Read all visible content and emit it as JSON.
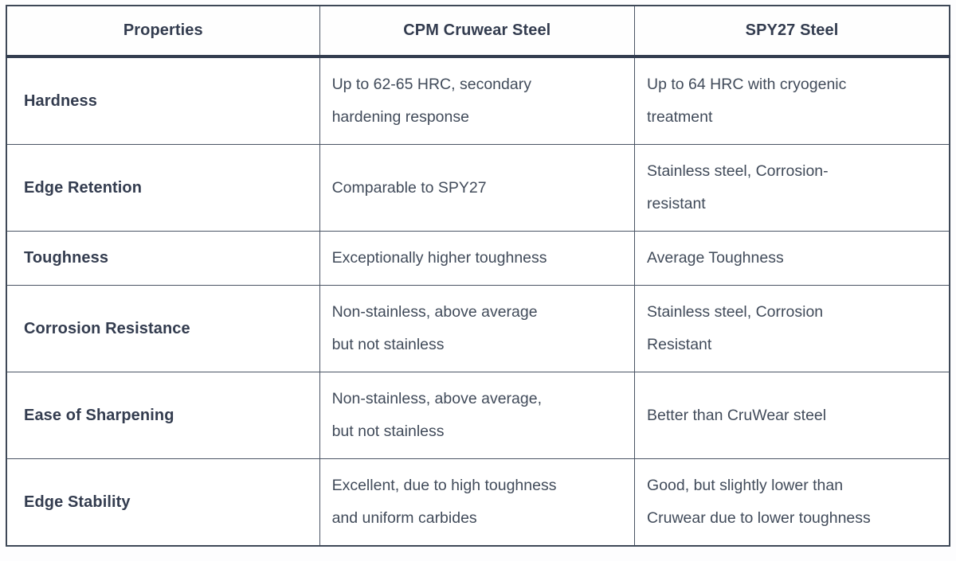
{
  "table": {
    "headers": [
      "Properties",
      "CPM Cruwear Steel",
      "SPY27 Steel"
    ],
    "rows": [
      {
        "property": "Hardness",
        "cruwear": [
          "Up to 62-65 HRC, secondary",
          "hardening response"
        ],
        "spy27": [
          "Up to 64 HRC with cryogenic",
          "treatment"
        ]
      },
      {
        "property": "Edge Retention",
        "cruwear": [
          "Comparable to SPY27"
        ],
        "spy27": [
          "Stainless steel, Corrosion-",
          "resistant"
        ]
      },
      {
        "property": "Toughness",
        "cruwear": [
          "Exceptionally higher toughness"
        ],
        "spy27": [
          "Average Toughness"
        ]
      },
      {
        "property": "Corrosion Resistance",
        "cruwear": [
          "Non-stainless, above average",
          "but not stainless"
        ],
        "spy27": [
          "Stainless steel, Corrosion",
          "Resistant"
        ]
      },
      {
        "property": "Ease of Sharpening",
        "cruwear": [
          "Non-stainless, above average,",
          "but not stainless"
        ],
        "spy27": [
          "Better than CruWear steel"
        ]
      },
      {
        "property": "Edge Stability",
        "cruwear": [
          "Excellent, due to high toughness",
          "and uniform carbides"
        ],
        "spy27": [
          "Good, but slightly lower than",
          "Cruwear due to lower toughness"
        ]
      }
    ],
    "colors": {
      "outer_border": "#3e4857",
      "inner_border": "#4a5464",
      "header_rule": "#333d4f",
      "text_bold": "#333c4f",
      "text_body": "#414b5a",
      "background": "#ffffff"
    }
  }
}
